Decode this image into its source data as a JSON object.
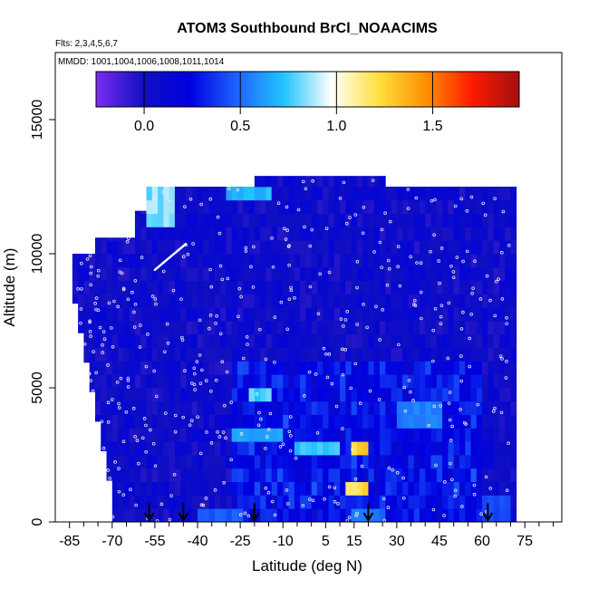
{
  "chart_data": {
    "type": "heatmap",
    "title": "ATOM3 Southbound BrCl_NOAACIMS",
    "flights_note": "Flts: 2,3,4,5,6,7",
    "dates_note": "MMDD: 1001,1004,1006,1008,1011,1014",
    "xlabel": "Latitude (deg N)",
    "ylabel": "Altitude (m)",
    "xlim": [
      -90,
      88
    ],
    "ylim": [
      0,
      17500
    ],
    "x_ticks": [
      -85,
      -70,
      -55,
      -40,
      -25,
      -10,
      5,
      15,
      30,
      45,
      60,
      75
    ],
    "x_tick_labels": [
      "-85",
      "-70",
      "-55",
      "-40",
      "-25",
      "-10",
      "5",
      "15",
      "30",
      "45",
      "60",
      "75"
    ],
    "y_ticks": [
      0,
      5000,
      10000,
      15000
    ],
    "y_tick_labels": [
      "0",
      "5000",
      "10000",
      "15000"
    ],
    "colorbar": {
      "range": [
        -0.25,
        1.95
      ],
      "ticks": [
        0.0,
        0.5,
        1.0,
        1.5
      ],
      "tick_labels": [
        "0.0",
        "0.5",
        "1.0",
        "1.5"
      ],
      "colors": [
        "#7b2cf0",
        "#1010c0",
        "#0000e0",
        "#1e64ff",
        "#22c4ff",
        "#ffffff",
        "#ffe040",
        "#ff9000",
        "#ff1a00",
        "#a01010"
      ]
    },
    "profile_arrows_lat": [
      -57,
      -45,
      -20,
      20,
      62
    ],
    "typical_value": 0.05,
    "enhanced_regions": [
      {
        "lat": [
          -57,
          -48
        ],
        "alt": [
          11000,
          12500
        ],
        "value": 0.9
      },
      {
        "lat": [
          -30,
          -15
        ],
        "alt": [
          11800,
          12400
        ],
        "value": 0.75
      },
      {
        "lat": [
          -22,
          -15
        ],
        "alt": [
          4500,
          5000
        ],
        "value": 0.85
      },
      {
        "lat": [
          -28,
          -10
        ],
        "alt": [
          3000,
          3500
        ],
        "value": 0.7
      },
      {
        "lat": [
          -5,
          10
        ],
        "alt": [
          2500,
          3000
        ],
        "value": 0.8
      },
      {
        "lat": [
          14,
          20
        ],
        "alt": [
          2500,
          3000
        ],
        "value": 1.35
      },
      {
        "lat": [
          13,
          19
        ],
        "alt": [
          1000,
          1500
        ],
        "value": 1.3
      },
      {
        "lat": [
          15,
          25
        ],
        "alt": [
          0,
          500
        ],
        "value": 0.55
      },
      {
        "lat": [
          30,
          45
        ],
        "alt": [
          3500,
          4500
        ],
        "value": 0.6
      },
      {
        "lat": [
          -40,
          -25
        ],
        "alt": [
          0,
          500
        ],
        "value": 0.5
      },
      {
        "lat": [
          60,
          70
        ],
        "alt": [
          0,
          1000
        ],
        "value": 0.45
      }
    ]
  }
}
